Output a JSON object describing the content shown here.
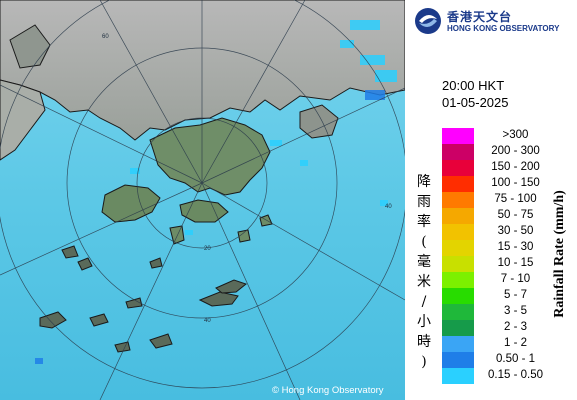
{
  "organization": {
    "name_cn": "香港天文台",
    "name_en": "HONG KONG OBSERVATORY",
    "logo_icon": "observatory-swirl-logo"
  },
  "timestamp": {
    "time": "20:00 HKT",
    "date": "01-05-2025"
  },
  "legend": {
    "title_cn": "降雨率(毫米/小時)",
    "title_en": "Rainfall Rate (mm/h)",
    "items": [
      {
        "label": ">300",
        "color": "#ff00ff"
      },
      {
        "label": "200 - 300",
        "color": "#cc0066"
      },
      {
        "label": "150 - 200",
        "color": "#e8003a"
      },
      {
        "label": "100 - 150",
        "color": "#ff2d00"
      },
      {
        "label": "75 - 100",
        "color": "#ff7a00"
      },
      {
        "label": "50 - 75",
        "color": "#f5a800"
      },
      {
        "label": "30 - 50",
        "color": "#f2c200"
      },
      {
        "label": "15 - 30",
        "color": "#e3d400"
      },
      {
        "label": "10 - 15",
        "color": "#c8e000"
      },
      {
        "label": "7 - 10",
        "color": "#7cf000"
      },
      {
        "label": "5 - 7",
        "color": "#28dc00"
      },
      {
        "label": "3 - 5",
        "color": "#1fb83a"
      },
      {
        "label": "2 - 3",
        "color": "#169b4a"
      },
      {
        "label": "1 - 2",
        "color": "#3aa5f5"
      },
      {
        "label": "0.50 - 1",
        "color": "#1f7ee8"
      },
      {
        "label": "0.15 - 0.50",
        "color": "#2ad0ff"
      }
    ]
  },
  "map": {
    "range_rings": [
      "20",
      "40",
      "60"
    ],
    "sea_color": "#5ac8e8",
    "land_color": "#6a8a6a",
    "copyright": "© Hong Kong Observatory"
  }
}
